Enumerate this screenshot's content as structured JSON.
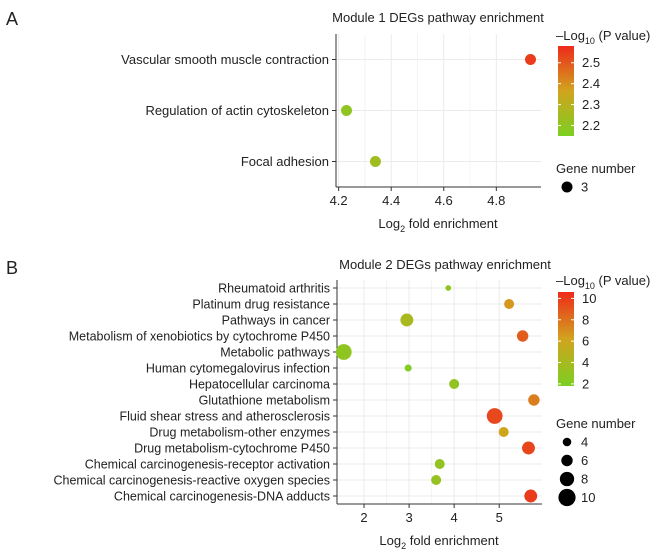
{
  "panels": [
    {
      "letter": "A",
      "title": "Module 1 DEGs pathway enrichment",
      "xlabel_main": "Log",
      "xlabel_sub": "2",
      "xlabel_rest": " fold enrichment",
      "legend_color_title_prefix": "–Log",
      "legend_color_title_sub": "10",
      "legend_color_title_rest": " (P value)",
      "legend_color_ticks": [
        "2.5",
        "2.4",
        "2.3",
        "2.2"
      ],
      "legend_size_title": "Gene number",
      "legend_size_entries": [
        "3"
      ]
    },
    {
      "letter": "B",
      "title": "Module 2 DEGs pathway enrichment",
      "xlabel_main": "Log",
      "xlabel_sub": "2",
      "xlabel_rest": " fold enrichment",
      "legend_color_title_prefix": "–Log",
      "legend_color_title_sub": "10",
      "legend_color_title_rest": " (P value)",
      "legend_color_ticks": [
        "10",
        "8",
        "6",
        "4",
        "2"
      ],
      "legend_size_title": "Gene number",
      "legend_size_entries": [
        "4",
        "6",
        "8",
        "10"
      ]
    }
  ],
  "colors": {
    "low": "#7ccf22",
    "mid": "#d1a41e",
    "high": "#ee2a1c",
    "grid": "#ebebeb",
    "axis": "#333333"
  },
  "chart_data": [
    {
      "type": "scatter",
      "title": "Module 1 DEGs pathway enrichment",
      "xlabel": "Log2 fold enrichment",
      "xlim": [
        4.19,
        4.97
      ],
      "xticks": [
        "4.2",
        "4.4",
        "4.6",
        "4.8"
      ],
      "xtick_values": [
        4.2,
        4.4,
        4.6,
        4.8
      ],
      "color_range": [
        2.15,
        2.58
      ],
      "categories": [
        "Vascular smooth muscle contraction",
        "Regulation of actin cytoskeleton",
        "Focal adhesion"
      ],
      "points": [
        {
          "category": "Vascular smooth muscle contraction",
          "x": 4.93,
          "neglog10p": 2.55,
          "gene_number": 3
        },
        {
          "category": "Regulation of actin cytoskeleton",
          "x": 4.23,
          "neglog10p": 2.2,
          "gene_number": 3
        },
        {
          "category": "Focal adhesion",
          "x": 4.34,
          "neglog10p": 2.24,
          "gene_number": 3
        }
      ]
    },
    {
      "type": "scatter",
      "title": "Module 2 DEGs pathway enrichment",
      "xlabel": "Log2 fold enrichment",
      "xlim": [
        1.4,
        5.95
      ],
      "xticks": [
        "2",
        "3",
        "4",
        "5"
      ],
      "xtick_values": [
        2,
        3,
        4,
        5
      ],
      "color_range": [
        1.8,
        10.6
      ],
      "categories": [
        "Rheumatoid arthritis",
        "Platinum drug resistance",
        "Pathways in cancer",
        "Metabolism of xenobiotics by cytochrome P450",
        "Metabolic pathways",
        "Human cytomegalovirus infection",
        "Hepatocellular carcinoma",
        "Glutathione metabolism",
        "Fluid shear stress and atherosclerosis",
        "Drug metabolism-other enzymes",
        "Drug metabolism-cytochrome P450",
        "Chemical carcinogenesis-receptor activation",
        "Chemical carcinogenesis-reactive oxygen species",
        "Chemical carcinogenesis-DNA adducts"
      ],
      "points": [
        {
          "category": "Rheumatoid arthritis",
          "x": 3.87,
          "neglog10p": 3.0,
          "gene_number": 2
        },
        {
          "category": "Platinum drug resistance",
          "x": 5.22,
          "neglog10p": 6.6,
          "gene_number": 5
        },
        {
          "category": "Pathways in cancer",
          "x": 2.95,
          "neglog10p": 4.2,
          "gene_number": 7
        },
        {
          "category": "Metabolism of xenobiotics by cytochrome P450",
          "x": 5.52,
          "neglog10p": 8.8,
          "gene_number": 6
        },
        {
          "category": "Metabolic pathways",
          "x": 1.55,
          "neglog10p": 2.8,
          "gene_number": 9
        },
        {
          "category": "Human cytomegalovirus infection",
          "x": 2.98,
          "neglog10p": 2.2,
          "gene_number": 3
        },
        {
          "category": "Hepatocellular carcinoma",
          "x": 4.0,
          "neglog10p": 3.0,
          "gene_number": 5
        },
        {
          "category": "Glutathione metabolism",
          "x": 5.77,
          "neglog10p": 7.6,
          "gene_number": 6
        },
        {
          "category": "Fluid shear stress and atherosclerosis",
          "x": 4.9,
          "neglog10p": 9.5,
          "gene_number": 9
        },
        {
          "category": "Drug metabolism-other enzymes",
          "x": 5.1,
          "neglog10p": 6.2,
          "gene_number": 5
        },
        {
          "category": "Drug metabolism-cytochrome P450",
          "x": 5.65,
          "neglog10p": 9.6,
          "gene_number": 7
        },
        {
          "category": "Chemical carcinogenesis-receptor activation",
          "x": 3.68,
          "neglog10p": 3.0,
          "gene_number": 5
        },
        {
          "category": "Chemical carcinogenesis-reactive oxygen species",
          "x": 3.6,
          "neglog10p": 3.1,
          "gene_number": 5
        },
        {
          "category": "Chemical carcinogenesis-DNA adducts",
          "x": 5.7,
          "neglog10p": 10.0,
          "gene_number": 7
        }
      ]
    }
  ]
}
